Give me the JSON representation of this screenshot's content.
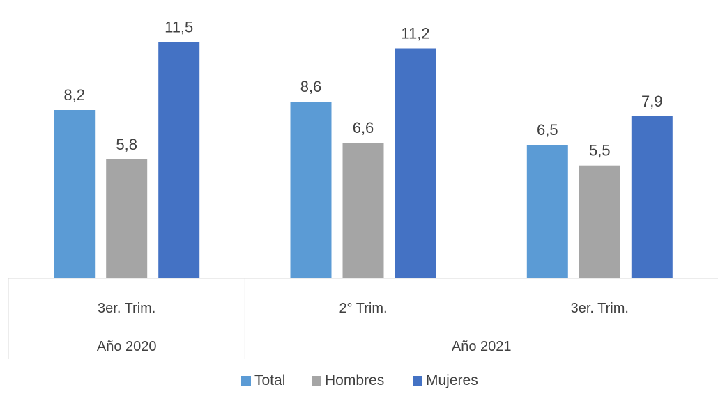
{
  "chart_data": {
    "type": "bar",
    "title": "",
    "xlabel": "",
    "ylabel": "",
    "ylim": [
      0,
      12.2
    ],
    "grid": false,
    "legend_position": "bottom",
    "value_format": "comma-decimal-1",
    "category_groups": [
      {
        "label": "Año 2020",
        "categories": [
          "3er. Trim."
        ]
      },
      {
        "label": "Año 2021",
        "categories": [
          "2° Trim.",
          "3er. Trim."
        ]
      }
    ],
    "categories": [
      "3er. Trim.",
      "2° Trim.",
      "3er. Trim."
    ],
    "series": [
      {
        "name": "Total",
        "color": "#5B9BD5",
        "values": [
          8.2,
          8.6,
          6.5
        ]
      },
      {
        "name": "Hombres",
        "color": "#A5A5A5",
        "values": [
          5.8,
          6.6,
          5.5
        ]
      },
      {
        "name": "Mujeres",
        "color": "#4472C4",
        "values": [
          11.5,
          11.2,
          7.9
        ]
      }
    ],
    "axis_color": "#D9D9D9",
    "text_color": "#404040"
  }
}
